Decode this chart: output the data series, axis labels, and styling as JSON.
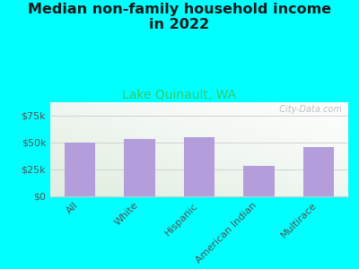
{
  "title": "Median non-family household income\nin 2022",
  "subtitle": "Lake Quinault, WA",
  "categories": [
    "All",
    "White",
    "Hispanic",
    "American Indian",
    "Multirace"
  ],
  "values": [
    50000,
    53000,
    55000,
    28000,
    46000
  ],
  "bar_color": "#b39ddb",
  "background_color": "#00FFFF",
  "title_color": "#1a1a1a",
  "subtitle_color": "#2ecc71",
  "tick_color": "#555555",
  "ylim": [
    0,
    87500
  ],
  "yticks": [
    0,
    25000,
    50000,
    75000
  ],
  "ytick_labels": [
    "$0",
    "$25k",
    "$50k",
    "$75k"
  ],
  "watermark": "  City-Data.com",
  "title_fontsize": 11.5,
  "subtitle_fontsize": 10,
  "tick_fontsize": 8
}
